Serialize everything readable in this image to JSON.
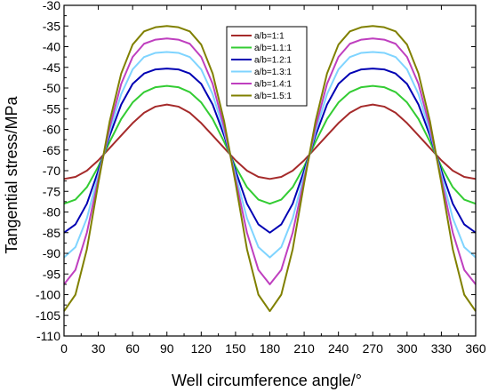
{
  "chart_data": {
    "type": "line",
    "xlabel": "Well circumference angle/°",
    "ylabel": "Tangential stress/MPa",
    "xlim": [
      0,
      360
    ],
    "ylim": [
      -110,
      -30
    ],
    "xticks": [
      0,
      30,
      60,
      90,
      120,
      150,
      180,
      210,
      240,
      270,
      300,
      330,
      360
    ],
    "yticks": [
      -110,
      -105,
      -100,
      -95,
      -90,
      -85,
      -80,
      -75,
      -70,
      -65,
      -60,
      -55,
      -50,
      -45,
      -40,
      -35,
      -30
    ],
    "grid": false,
    "legend_position": "top-center",
    "x": [
      0,
      10,
      20,
      30,
      40,
      50,
      60,
      70,
      80,
      90,
      100,
      110,
      120,
      130,
      140,
      150,
      160,
      170,
      180,
      190,
      200,
      210,
      220,
      230,
      240,
      250,
      260,
      270,
      280,
      290,
      300,
      310,
      320,
      330,
      340,
      350,
      360
    ],
    "series": [
      {
        "name": "a/b=1:1",
        "color": "#a52a2a",
        "values": [
          -72,
          -71.5,
          -70,
          -67.5,
          -64.5,
          -61.5,
          -58.5,
          -56,
          -54.5,
          -54,
          -54.5,
          -56,
          -58.5,
          -61.5,
          -64.5,
          -67.5,
          -70,
          -71.5,
          -72,
          -71.5,
          -70,
          -67.5,
          -64.5,
          -61.5,
          -58.5,
          -56,
          -54.5,
          -54,
          -54.5,
          -56,
          -58.5,
          -61.5,
          -64.5,
          -67.5,
          -70,
          -71.5,
          -72
        ]
      },
      {
        "name": "a/b=1.1:1",
        "color": "#33cc33",
        "values": [
          -78,
          -77,
          -74,
          -69,
          -63,
          -57.5,
          -53.5,
          -51,
          -49.8,
          -49.5,
          -49.8,
          -51,
          -53.5,
          -57.5,
          -63,
          -69,
          -74,
          -77,
          -78,
          -77,
          -74,
          -69,
          -63,
          -57.5,
          -53.5,
          -51,
          -49.8,
          -49.5,
          -49.8,
          -51,
          -53.5,
          -57.5,
          -63,
          -69,
          -74,
          -77,
          -78
        ]
      },
      {
        "name": "a/b=1.2:1",
        "color": "#0000b3",
        "values": [
          -85,
          -83,
          -78,
          -70,
          -61.5,
          -54,
          -49,
          -46.5,
          -45.5,
          -45.3,
          -45.5,
          -46.5,
          -49,
          -54,
          -61.5,
          -70,
          -78,
          -83,
          -85,
          -83,
          -78,
          -70,
          -61.5,
          -54,
          -49,
          -46.5,
          -45.5,
          -45.3,
          -45.5,
          -46.5,
          -49,
          -54,
          -61.5,
          -70,
          -78,
          -83,
          -85
        ]
      },
      {
        "name": "a/b=1.3:1",
        "color": "#7fd4ff",
        "values": [
          -91,
          -88.5,
          -81.5,
          -71,
          -60.5,
          -51.5,
          -45.5,
          -42.5,
          -41.5,
          -41.3,
          -41.5,
          -42.5,
          -45.5,
          -51.5,
          -60.5,
          -71,
          -81.5,
          -88.5,
          -91,
          -88.5,
          -81.5,
          -71,
          -60.5,
          -51.5,
          -45.5,
          -42.5,
          -41.5,
          -41.3,
          -41.5,
          -42.5,
          -45.5,
          -51.5,
          -60.5,
          -71,
          -81.5,
          -88.5,
          -91
        ]
      },
      {
        "name": "a/b=1.4:1",
        "color": "#bf3fbf",
        "values": [
          -97.5,
          -94,
          -85,
          -72,
          -59.5,
          -49,
          -42.5,
          -39.3,
          -38.3,
          -38,
          -38.3,
          -39.3,
          -42.5,
          -49,
          -59.5,
          -72,
          -85,
          -94,
          -97.5,
          -94,
          -85,
          -72,
          -59.5,
          -49,
          -42.5,
          -39.3,
          -38.3,
          -38,
          -38.3,
          -39.3,
          -42.5,
          -49,
          -59.5,
          -72,
          -85,
          -94,
          -97.5
        ]
      },
      {
        "name": "a/b=1.5:1",
        "color": "#808000",
        "values": [
          -104,
          -100,
          -89,
          -73,
          -58,
          -46.5,
          -39.5,
          -36.3,
          -35.3,
          -35,
          -35.3,
          -36.3,
          -39.5,
          -46.5,
          -58,
          -73,
          -89,
          -100,
          -104,
          -100,
          -89,
          -73,
          -58,
          -46.5,
          -39.5,
          -36.3,
          -35.3,
          -35,
          -35.3,
          -36.3,
          -39.5,
          -46.5,
          -58,
          -73,
          -89,
          -100,
          -104
        ]
      }
    ]
  }
}
